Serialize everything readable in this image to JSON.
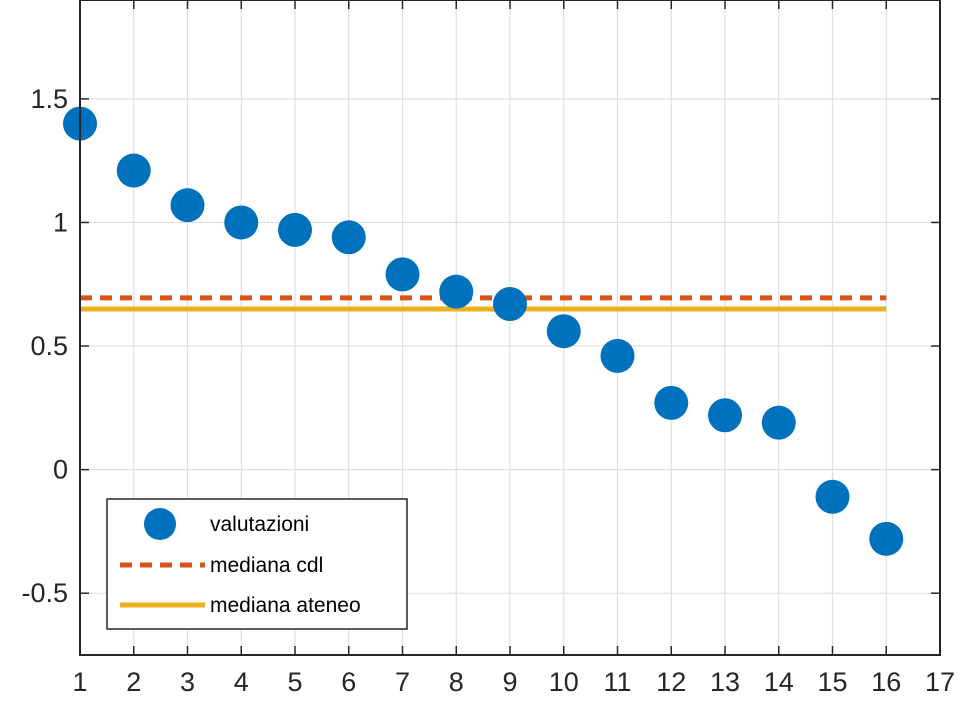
{
  "chart_data": {
    "type": "scatter",
    "title": "",
    "xlabel": "",
    "ylabel": "",
    "xlim": [
      1,
      17
    ],
    "ylim": [
      -0.75,
      1.9
    ],
    "grid": true,
    "legend_position": "bottom-left",
    "x_ticks": [
      "1",
      "2",
      "3",
      "4",
      "5",
      "6",
      "7",
      "8",
      "9",
      "10",
      "11",
      "12",
      "13",
      "14",
      "15",
      "16",
      "17"
    ],
    "y_ticks": [
      {
        "value": 1.5,
        "label": "1.5"
      },
      {
        "value": 1,
        "label": "1"
      },
      {
        "value": 0.5,
        "label": "0.5"
      },
      {
        "value": 0,
        "label": "0"
      },
      {
        "value": -0.5,
        "label": "-0.5"
      }
    ],
    "series": [
      {
        "name": "valutazioni",
        "kind": "markers",
        "color": "#0072BD",
        "x": [
          1,
          2,
          3,
          4,
          5,
          6,
          7,
          8,
          9,
          10,
          11,
          12,
          13,
          14,
          15,
          16
        ],
        "y": [
          1.4,
          1.21,
          1.07,
          1.0,
          0.97,
          0.94,
          0.79,
          0.72,
          0.67,
          0.56,
          0.46,
          0.27,
          0.22,
          0.19,
          -0.11,
          -0.28
        ]
      },
      {
        "name": "mediana cdl",
        "kind": "dashed-line",
        "color": "#D95319",
        "x": [
          1,
          16
        ],
        "y": [
          0.695,
          0.695
        ]
      },
      {
        "name": "mediana ateneo",
        "kind": "solid-line",
        "color": "#EDB120",
        "x": [
          1,
          16
        ],
        "y": [
          0.65,
          0.65
        ]
      }
    ]
  }
}
